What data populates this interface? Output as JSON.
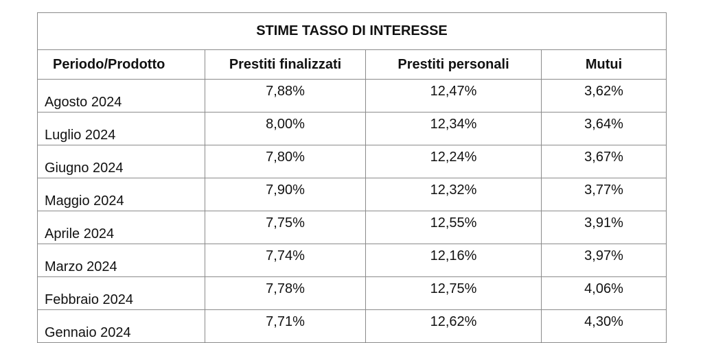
{
  "title": "STIME TASSO DI INTERESSE",
  "headers": [
    "Periodo/Prodotto",
    "Prestiti finalizzati",
    "Prestiti personali",
    "Mutui"
  ],
  "rows": [
    {
      "period": "Agosto 2024",
      "finalizzati": "7,88%",
      "personali": "12,47%",
      "mutui": "3,62%"
    },
    {
      "period": "Luglio 2024",
      "finalizzati": "8,00%",
      "personali": "12,34%",
      "mutui": "3,64%"
    },
    {
      "period": "Giugno 2024",
      "finalizzati": "7,80%",
      "personali": "12,24%",
      "mutui": "3,67%"
    },
    {
      "period": "Maggio 2024",
      "finalizzati": "7,90%",
      "personali": "12,32%",
      "mutui": "3,77%"
    },
    {
      "period": "Aprile 2024",
      "finalizzati": "7,75%",
      "personali": "12,55%",
      "mutui": "3,91%"
    },
    {
      "period": "Marzo 2024",
      "finalizzati": "7,74%",
      "personali": "12,16%",
      "mutui": "3,97%"
    },
    {
      "period": "Febbraio 2024",
      "finalizzati": "7,78%",
      "personali": "12,75%",
      "mutui": "4,06%"
    },
    {
      "period": "Gennaio 2024",
      "finalizzati": "7,71%",
      "personali": "12,62%",
      "mutui": "4,30%"
    }
  ]
}
